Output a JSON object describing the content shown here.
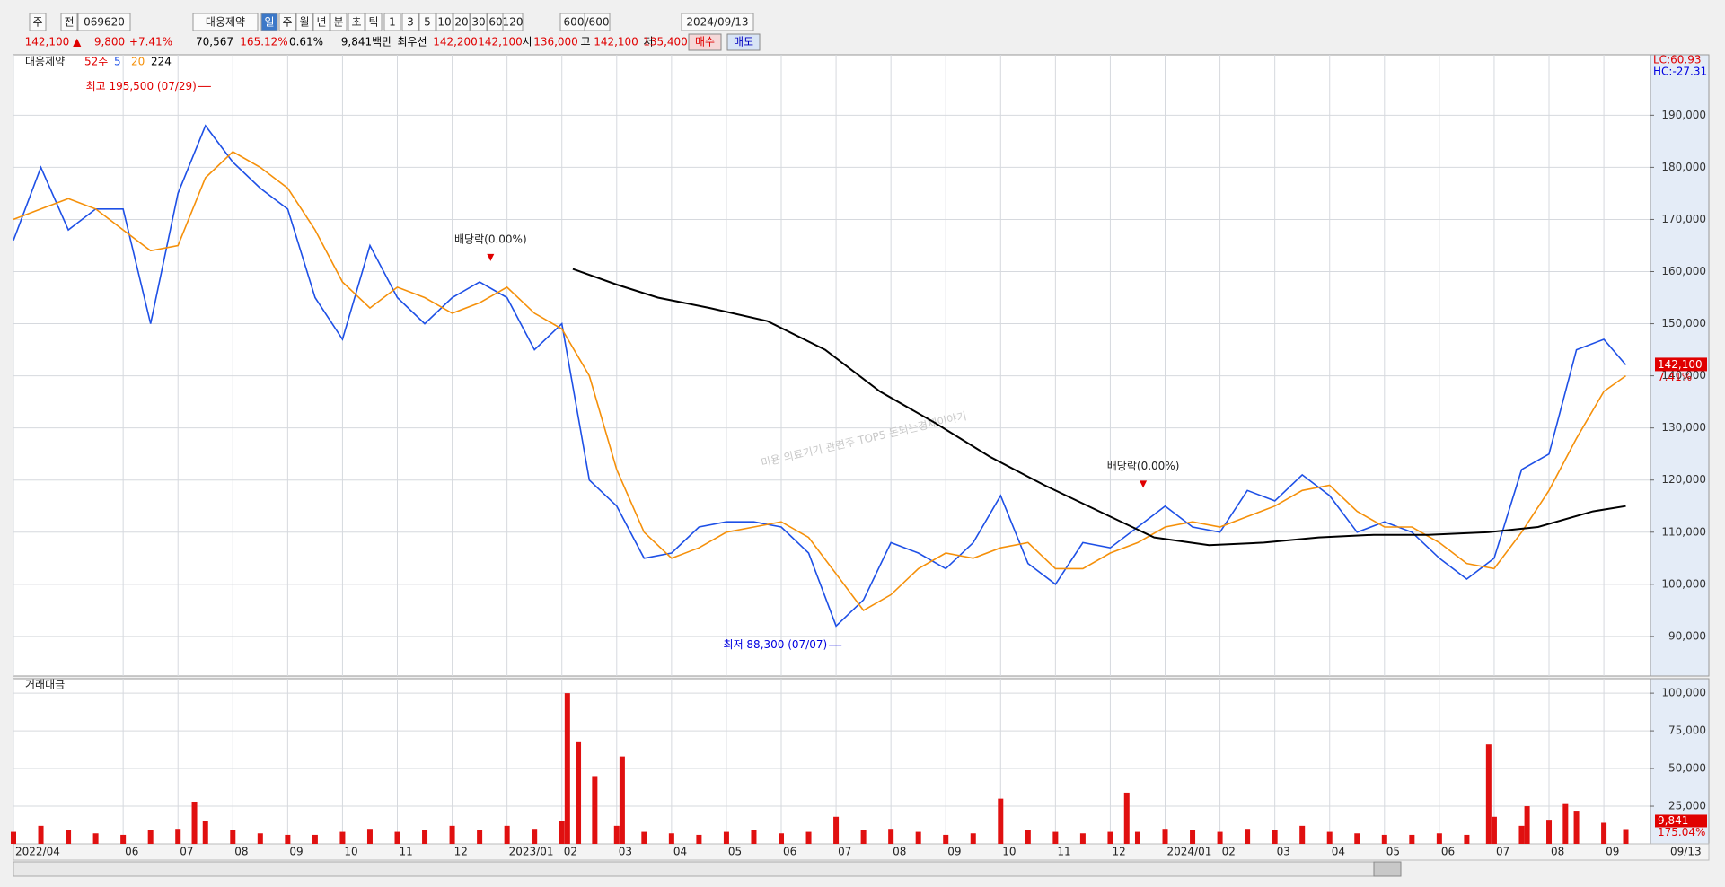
{
  "toolbar": [
    "주",
    "전",
    "069620",
    "대웅제약",
    "일",
    "주",
    "월",
    "년",
    "분",
    "초",
    "틱",
    "1",
    "3",
    "5",
    "10",
    "20",
    "30",
    "60",
    "120",
    "600",
    "/600",
    "2024/09/13"
  ],
  "info": [
    {
      "text": "142,100 ▲",
      "color": "#e00000"
    },
    {
      "text": "9,800",
      "color": "#e00000"
    },
    {
      "text": "+7.41%",
      "color": "#e00000"
    },
    {
      "text": "70,567",
      "color": "#000000"
    },
    {
      "text": "165.12%",
      "color": "#e00000"
    },
    {
      "text": "0.61%",
      "color": "#000000"
    },
    {
      "text": "9,841백만",
      "color": "#000000"
    },
    {
      "text": "최우선",
      "color": "#000000"
    },
    {
      "text": "142,200",
      "color": "#e00000"
    },
    {
      "text": "142,100",
      "color": "#e00000"
    },
    {
      "text": "시",
      "color": "#000000"
    },
    {
      "text": "136,000",
      "color": "#e00000"
    },
    {
      "text": "고",
      "color": "#000000"
    },
    {
      "text": "142,100",
      "color": "#e00000"
    },
    {
      "text": "저",
      "color": "#000000"
    },
    {
      "text": "135,400",
      "color": "#e00000"
    },
    {
      "text": "매수",
      "color": "#e00000"
    },
    {
      "text": "매도",
      "color": "#0000c0"
    }
  ],
  "chart_data": [
    {
      "type": "line",
      "name": "대웅제약",
      "period": "52주",
      "lc": "LC:60.93",
      "hc": "HC:-27.31",
      "last": {
        "value": 142100,
        "label": "142,100",
        "change": "7.41%"
      },
      "watermark": "미용 의료기기 관련주 TOP5 돈되는경제이야기",
      "xlim": [
        0,
        29.85
      ],
      "ylim": [
        82400,
        201600
      ],
      "yticks": [
        {
          "value": 90000,
          "label": "90,000"
        },
        {
          "value": 100000,
          "label": "100,000"
        },
        {
          "value": 110000,
          "label": "110,000"
        },
        {
          "value": 120000,
          "label": "120,000"
        },
        {
          "value": 130000,
          "label": "130,000"
        },
        {
          "value": 140000,
          "label": "140,000"
        },
        {
          "value": 150000,
          "label": "150,000"
        },
        {
          "value": 160000,
          "label": "160,000"
        },
        {
          "value": 170000,
          "label": "170,000"
        },
        {
          "value": 180000,
          "label": "180,000"
        },
        {
          "value": 190000,
          "label": "190,000"
        }
      ],
      "grid": true,
      "annotations": [
        {
          "label": "최고 195,500 (07/29)",
          "x": 3.6,
          "y": 195500,
          "color": "#e00000",
          "side": "left"
        },
        {
          "label": "최저 88,300 (07/07)",
          "x": 15.1,
          "y": 88300,
          "color": "#0000e0",
          "side": "left"
        },
        {
          "label": "배당락(0.00%)",
          "x": 8.7,
          "y": 162000,
          "color": "#222222",
          "side": "top"
        },
        {
          "label": "배당락(0.00%)",
          "x": 20.6,
          "y": 118500,
          "color": "#222222",
          "side": "top"
        }
      ],
      "series": [
        {
          "name": "5",
          "color": "#1e50e6",
          "x": [
            0,
            0.5,
            1,
            1.5,
            2,
            2.5,
            3,
            3.5,
            4,
            4.5,
            5,
            5.5,
            6,
            6.5,
            7,
            7.5,
            8,
            8.5,
            9,
            9.5,
            10,
            10.5,
            11,
            11.5,
            12,
            12.5,
            13,
            13.5,
            14,
            14.5,
            15,
            15.5,
            16,
            16.5,
            17,
            17.5,
            18,
            18.5,
            19,
            19.5,
            20,
            20.5,
            21,
            21.5,
            22,
            22.5,
            23,
            23.5,
            24,
            24.5,
            25,
            25.5,
            26,
            26.5,
            27,
            27.5,
            28,
            28.5,
            29,
            29.4
          ],
          "values": [
            166000,
            180000,
            168000,
            172000,
            172000,
            150000,
            175000,
            188000,
            181000,
            176000,
            172000,
            155000,
            147000,
            165000,
            155000,
            150000,
            155000,
            158000,
            155000,
            145000,
            150000,
            120000,
            115000,
            105000,
            106000,
            111000,
            112000,
            112000,
            111000,
            106000,
            92000,
            97000,
            108000,
            106000,
            103000,
            108000,
            117000,
            104000,
            100000,
            108000,
            107000,
            111000,
            115000,
            111000,
            110000,
            118000,
            116000,
            121000,
            117000,
            110000,
            112000,
            110000,
            105000,
            101000,
            105000,
            122000,
            125000,
            145000,
            147000,
            142100
          ]
        },
        {
          "name": "20",
          "color": "#f5900a",
          "x": [
            0,
            0.5,
            1,
            1.5,
            2,
            2.5,
            3,
            3.5,
            4,
            4.5,
            5,
            5.5,
            6,
            6.5,
            7,
            7.5,
            8,
            8.5,
            9,
            9.5,
            10,
            10.5,
            11,
            11.5,
            12,
            12.5,
            13,
            13.5,
            14,
            14.5,
            15,
            15.5,
            16,
            16.5,
            17,
            17.5,
            18,
            18.5,
            19,
            19.5,
            20,
            20.5,
            21,
            21.5,
            22,
            22.5,
            23,
            23.5,
            24,
            24.5,
            25,
            25.5,
            26,
            26.5,
            27,
            27.5,
            28,
            28.5,
            29,
            29.4
          ],
          "values": [
            170000,
            172000,
            174000,
            172000,
            168000,
            164000,
            165000,
            178000,
            183000,
            180000,
            176000,
            168000,
            158000,
            153000,
            157000,
            155000,
            152000,
            154000,
            157000,
            152000,
            149000,
            140000,
            122000,
            110000,
            105000,
            107000,
            110000,
            111000,
            112000,
            109000,
            102000,
            95000,
            98000,
            103000,
            106000,
            105000,
            107000,
            108000,
            103000,
            103000,
            106000,
            108000,
            111000,
            112000,
            111000,
            113000,
            115000,
            118000,
            119000,
            114000,
            111000,
            111000,
            108000,
            104000,
            103000,
            110000,
            118000,
            128000,
            137000,
            140000
          ]
        },
        {
          "name": "224",
          "color": "#000000",
          "x": [
            10.2,
            11,
            11.75,
            12.7,
            13.75,
            14.8,
            15.8,
            16.8,
            17.8,
            18.8,
            19.8,
            20.8,
            21.8,
            22.8,
            23.8,
            24.8,
            25.8,
            26.9,
            27.8,
            28.8,
            29.4
          ],
          "values": [
            160500,
            157500,
            155000,
            153000,
            150500,
            145000,
            137000,
            131000,
            124500,
            119000,
            114000,
            109000,
            107500,
            108000,
            109000,
            109500,
            109500,
            110000,
            111000,
            114000,
            115000
          ]
        }
      ]
    },
    {
      "type": "bar",
      "title": "거래대금",
      "color": "#e01010",
      "last_date": "09/13",
      "last": {
        "value": 9841,
        "label": "9,841",
        "ratio": "175.04%"
      },
      "xlim": [
        0,
        29.85
      ],
      "ylim": [
        0,
        109600
      ],
      "yticks": [
        {
          "value": 25000,
          "label": "25,000"
        },
        {
          "value": 50000,
          "label": "50,000"
        },
        {
          "value": 75000,
          "label": "75,000"
        },
        {
          "value": 100000,
          "label": "100,000"
        }
      ],
      "xticks": [
        {
          "value": 0,
          "label": "2022/04"
        },
        {
          "value": 2,
          "label": "06"
        },
        {
          "value": 3,
          "label": "07"
        },
        {
          "value": 4,
          "label": "08"
        },
        {
          "value": 5,
          "label": "09"
        },
        {
          "value": 6,
          "label": "10"
        },
        {
          "value": 7,
          "label": "11"
        },
        {
          "value": 8,
          "label": "12"
        },
        {
          "value": 9,
          "label": "2023/01"
        },
        {
          "value": 10,
          "label": "02"
        },
        {
          "value": 11,
          "label": "03"
        },
        {
          "value": 12,
          "label": "04"
        },
        {
          "value": 13,
          "label": "05"
        },
        {
          "value": 14,
          "label": "06"
        },
        {
          "value": 15,
          "label": "07"
        },
        {
          "value": 16,
          "label": "08"
        },
        {
          "value": 17,
          "label": "09"
        },
        {
          "value": 18,
          "label": "10"
        },
        {
          "value": 19,
          "label": "11"
        },
        {
          "value": 20,
          "label": "12"
        },
        {
          "value": 21,
          "label": "2024/01"
        },
        {
          "value": 22,
          "label": "02"
        },
        {
          "value": 23,
          "label": "03"
        },
        {
          "value": 24,
          "label": "04"
        },
        {
          "value": 25,
          "label": "05"
        },
        {
          "value": 26,
          "label": "06"
        },
        {
          "value": 27,
          "label": "07"
        },
        {
          "value": 28,
          "label": "08"
        },
        {
          "value": 29,
          "label": "09"
        }
      ],
      "x": [
        0,
        0.5,
        1,
        1.5,
        2,
        2.5,
        3,
        3.3,
        3.5,
        4,
        4.5,
        5,
        5.5,
        6,
        6.5,
        7,
        7.5,
        8,
        8.5,
        9,
        9.5,
        10,
        10.1,
        10.3,
        10.6,
        11,
        11.1,
        11.5,
        12,
        12.5,
        13,
        13.5,
        14,
        14.5,
        15,
        15.5,
        16,
        16.5,
        17,
        17.5,
        18,
        18.5,
        19,
        19.5,
        20,
        20.3,
        20.5,
        21,
        21.5,
        22,
        22.5,
        23,
        23.5,
        24,
        24.5,
        25,
        25.5,
        26,
        26.5,
        26.9,
        27,
        27.5,
        27.6,
        28,
        28.3,
        28.5,
        29,
        29.4
      ],
      "values": [
        8000,
        12000,
        9000,
        7000,
        6000,
        9000,
        10000,
        28000,
        15000,
        9000,
        7000,
        6000,
        6000,
        8000,
        10000,
        8000,
        9000,
        12000,
        9000,
        12000,
        10000,
        15000,
        100000,
        68000,
        45000,
        12000,
        58000,
        8000,
        7000,
        6000,
        8000,
        9000,
        7000,
        8000,
        18000,
        9000,
        10000,
        8000,
        6000,
        7000,
        30000,
        9000,
        8000,
        7000,
        8000,
        34000,
        8000,
        10000,
        9000,
        8000,
        10000,
        9000,
        12000,
        8000,
        7000,
        6000,
        6000,
        7000,
        6000,
        66000,
        18000,
        12000,
        25000,
        16000,
        27000,
        22000,
        14000,
        9841
      ]
    }
  ]
}
